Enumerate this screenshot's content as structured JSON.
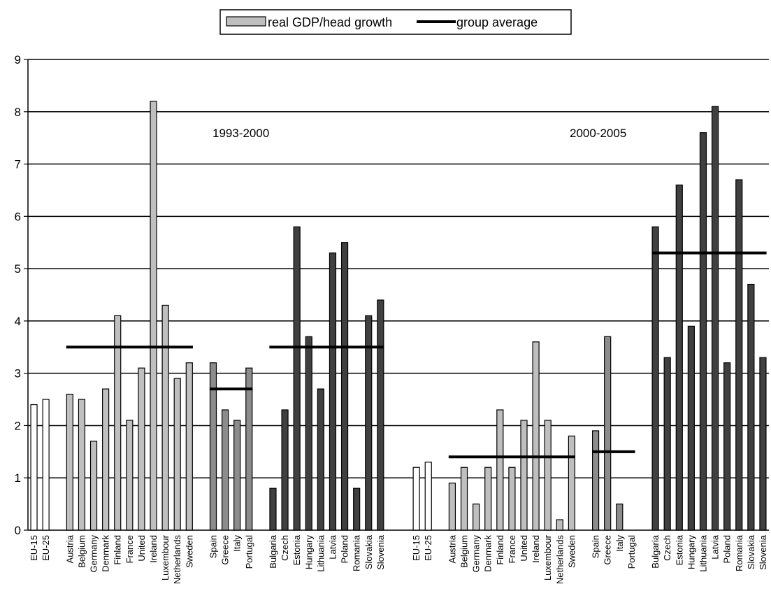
{
  "chart_data": {
    "type": "bar",
    "title": "",
    "xlabel": "",
    "ylabel": "",
    "ylim": [
      0,
      9
    ],
    "yticks": [
      "0",
      "1",
      "2",
      "3",
      "4",
      "5",
      "6",
      "7",
      "8",
      "9"
    ],
    "grid": true,
    "legend": {
      "placement": "top-center",
      "entries": [
        {
          "label": "real GDP/head growth",
          "kind": "bar"
        },
        {
          "label": "group average",
          "kind": "line"
        }
      ]
    },
    "colors": {
      "eu_aggregate": "#ffffff",
      "eu15_members": "#bfbfbf",
      "cohesion_members": "#8c8c8c",
      "new_members": "#404040",
      "average_line": "#000000",
      "grid": "#000000"
    },
    "annotations": [
      "1993-2000",
      "2000-2005"
    ],
    "periods": [
      {
        "label": "1993-2000",
        "groups": [
          {
            "id": "eu",
            "style": "eu_aggregate",
            "categories": [
              "EU-15",
              "EU-25"
            ],
            "values": [
              2.4,
              2.5
            ]
          },
          {
            "id": "eu15",
            "style": "eu15_members",
            "average": 3.5,
            "categories": [
              "Austria",
              "Belgium",
              "Germany",
              "Denmark",
              "Finland",
              "France",
              "United",
              "Ireland",
              "Luxembour",
              "Netherlands",
              "Sweden"
            ],
            "values": [
              2.6,
              2.5,
              1.7,
              2.7,
              4.1,
              2.1,
              3.1,
              8.2,
              4.3,
              2.9,
              3.2
            ]
          },
          {
            "id": "cohesion",
            "style": "cohesion_members",
            "average": 2.7,
            "categories": [
              "Spain",
              "Greece",
              "Italy",
              "Portugal"
            ],
            "values": [
              3.2,
              2.3,
              2.1,
              3.1
            ]
          },
          {
            "id": "new",
            "style": "new_members",
            "average": 3.5,
            "categories": [
              "Bulgaria",
              "Czech",
              "Estonia",
              "Hungary",
              "Lithuania",
              "Latvia",
              "Poland",
              "Romania",
              "Slovakia",
              "Slovenia"
            ],
            "values": [
              0.8,
              2.3,
              5.8,
              3.7,
              2.7,
              5.3,
              5.5,
              0.8,
              4.1,
              4.4
            ]
          }
        ]
      },
      {
        "label": "2000-2005",
        "groups": [
          {
            "id": "eu",
            "style": "eu_aggregate",
            "categories": [
              "EU-15",
              "EU-25"
            ],
            "values": [
              1.2,
              1.3
            ]
          },
          {
            "id": "eu15",
            "style": "eu15_members",
            "average": 1.4,
            "categories": [
              "Austria",
              "Belgium",
              "Germany",
              "Denmark",
              "Finland",
              "France",
              "United",
              "Ireland",
              "Luxembour",
              "Netherlands",
              "Sweden"
            ],
            "values": [
              0.9,
              1.2,
              0.5,
              1.2,
              2.3,
              1.2,
              2.1,
              3.6,
              2.1,
              0.2,
              1.8
            ]
          },
          {
            "id": "cohesion",
            "style": "cohesion_members",
            "average": 1.5,
            "categories": [
              "Spain",
              "Greece",
              "Italy",
              "Portugal"
            ],
            "values": [
              1.9,
              3.7,
              0.5,
              0.0
            ]
          },
          {
            "id": "new",
            "style": "new_members",
            "average": 5.3,
            "categories": [
              "Bulgaria",
              "Czech",
              "Estonia",
              "Hungary",
              "Lithuania",
              "Latvia",
              "Poland",
              "Romania",
              "Slovakia",
              "Slovenia"
            ],
            "values": [
              5.8,
              3.3,
              6.6,
              3.9,
              7.6,
              8.1,
              3.2,
              6.7,
              4.7,
              3.3
            ]
          }
        ]
      }
    ]
  }
}
